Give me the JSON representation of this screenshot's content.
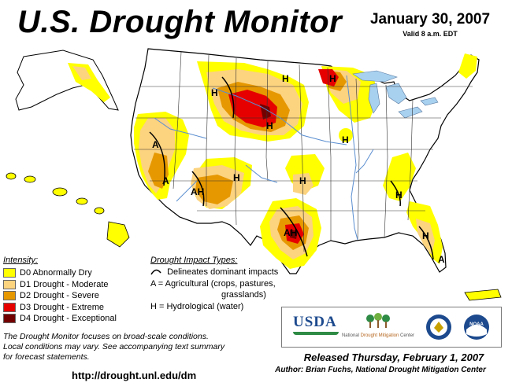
{
  "header": {
    "title": "U.S. Drought Monitor",
    "date": "January 30, 2007",
    "valid": "Valid 8 a.m. EDT"
  },
  "legend": {
    "intensity_heading": "Intensity:",
    "items": [
      {
        "label": "D0 Abnormally Dry",
        "color": "#ffff00"
      },
      {
        "label": "D1 Drought - Moderate",
        "color": "#fcd37f"
      },
      {
        "label": "D2 Drought - Severe",
        "color": "#e69800"
      },
      {
        "label": "D3 Drought - Extreme",
        "color": "#e60000"
      },
      {
        "label": "D4 Drought - Exceptional",
        "color": "#730000"
      }
    ],
    "impact_heading": "Drought Impact Types:",
    "impact_delineates": "Delineates dominant impacts",
    "impact_a": "A = Agricultural (crops, pastures,",
    "impact_a2": "grasslands)",
    "impact_h": "H = Hydrological (water)"
  },
  "map": {
    "labels": [
      "A",
      "H",
      "AH"
    ]
  },
  "footer": {
    "note1": "The Drought Monitor focuses on broad-scale conditions.",
    "note2": "Local conditions may vary.  See accompanying text summary",
    "note3": "for forecast statements.",
    "url": "http://drought.unl.edu/dm",
    "released": "Released Thursday, February 1, 2007",
    "author": "Author: Brian Fuchs, National Drought Mitigation Center"
  },
  "logos": {
    "usda": "USDA",
    "ndmc_a": "National",
    "ndmc_b": "Drought Mitigation",
    "ndmc_c": "Center",
    "noaa": "NOAA"
  },
  "colors": {
    "d0": "#ffff00",
    "d1": "#fcd37f",
    "d2": "#e69800",
    "d3": "#e60000",
    "d4": "#730000",
    "water": "#a8d0ef",
    "land": "#ffffff"
  }
}
